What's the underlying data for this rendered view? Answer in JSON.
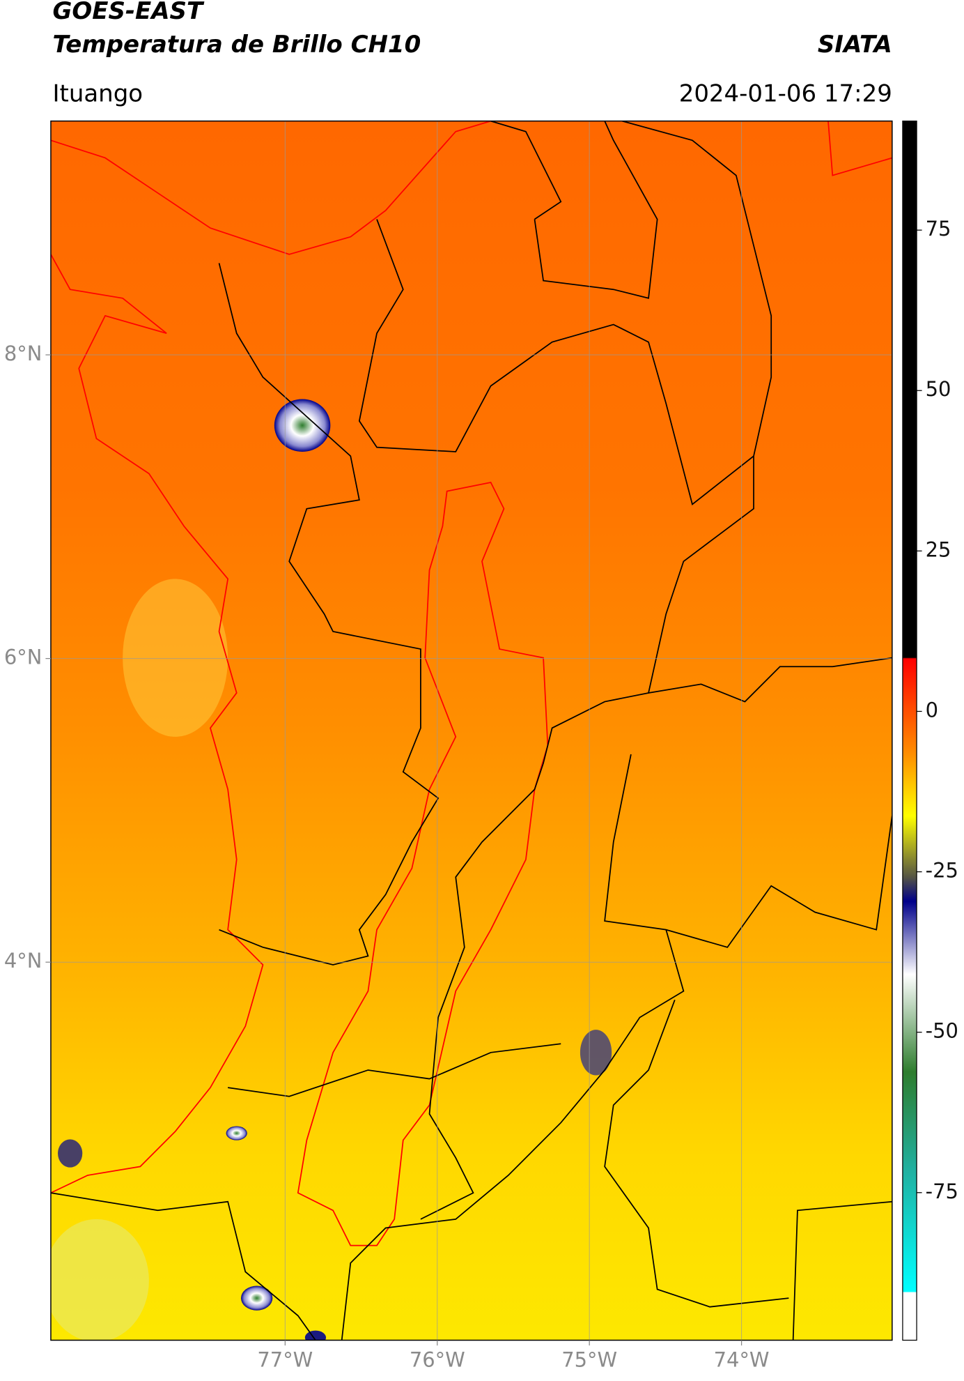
{
  "header": {
    "title": "GOES-EAST",
    "subtitle": "Temperatura de Brillo CH10",
    "source": "SIATA",
    "location": "Ituango",
    "timestamp": "2024-01-06 17:29"
  },
  "chart_data": {
    "type": "map",
    "xlim": [
      -78.54,
      -73.01
    ],
    "ylim": [
      1.51,
      9.54
    ],
    "xticks": [
      {
        "value": -77,
        "label": "77°W"
      },
      {
        "value": -76,
        "label": "76°W"
      },
      {
        "value": -75,
        "label": "75°W"
      },
      {
        "value": -74,
        "label": "74°W"
      }
    ],
    "yticks": [
      {
        "value": 4,
        "label": "4°N"
      },
      {
        "value": 6,
        "label": "6°N"
      },
      {
        "value": 8,
        "label": "8°N"
      }
    ],
    "grid": true,
    "colorbar": {
      "lim": [
        -98,
        92
      ],
      "ticks": [
        -75,
        -50,
        -25,
        0,
        25,
        50,
        75
      ]
    }
  }
}
